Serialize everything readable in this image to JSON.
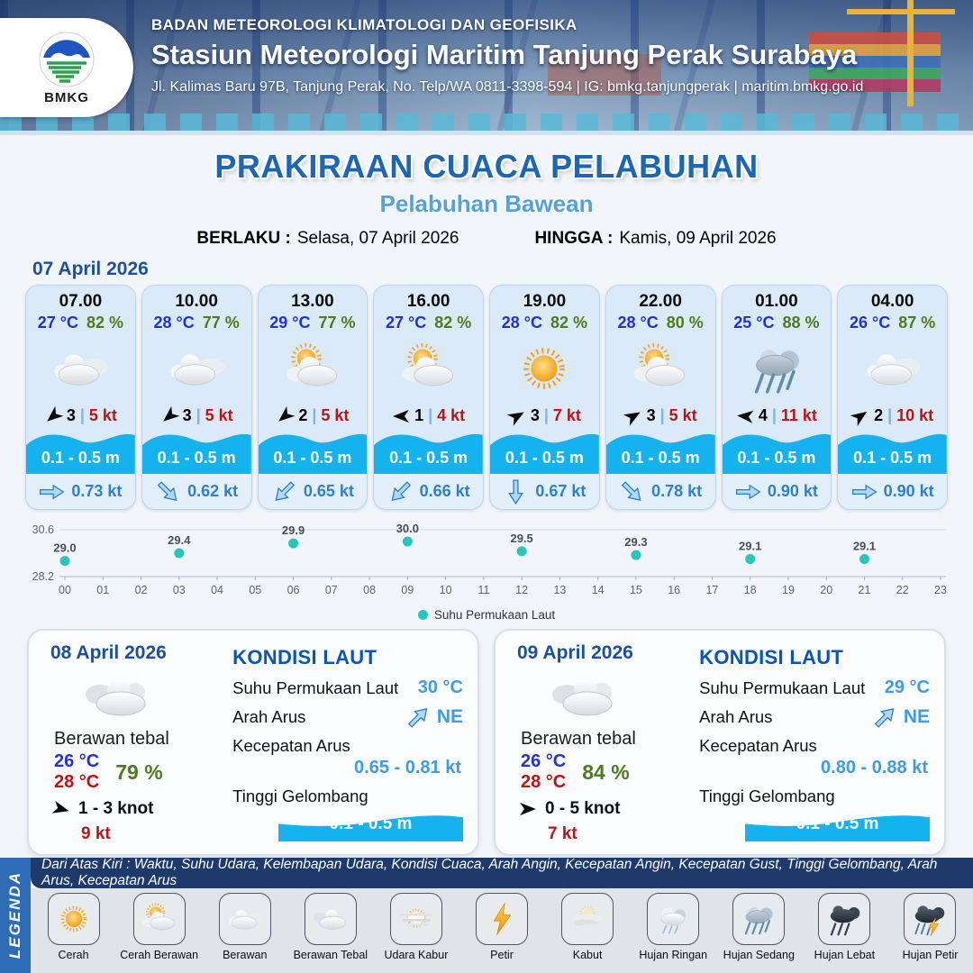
{
  "header": {
    "logo": "BMKG",
    "agency": "BADAN METEOROLOGI KLIMATOLOGI DAN GEOFISIKA",
    "station": "Stasiun Meteorologi Maritim Tanjung Perak Surabaya",
    "contact": "Jl. Kalimas Baru 97B, Tanjung Perak, No. Telp/WA 0811-3398-594 | IG: bmkg.tanjungperak | maritim.bmkg.go.id"
  },
  "title": {
    "main": "PRAKIRAAN CUACA PELABUHAN",
    "port": "Pelabuhan Bawean",
    "berlaku_label": "BERLAKU :",
    "berlaku_value": "Selasa, 07 April 2026",
    "hingga_label": "HINGGA :",
    "hingga_value": "Kamis, 09 April 2026"
  },
  "hourly_date": "07 April 2026",
  "ui": {
    "divider": "|"
  },
  "colors": {
    "accent_blue": "#1b66b5",
    "temp_blue": "#2330d6",
    "humidity_green": "#4e7c1d",
    "gust_red": "#c01212",
    "wave_cyan": "#14b2ee",
    "current_blue": "#2d7fd2",
    "sst_point": "#26c6b9"
  },
  "hourly": [
    {
      "time": "07.00",
      "temp": "27 °C",
      "humidity": "82 %",
      "icon": "berawan",
      "icon_ref": "#ic-berawan",
      "wind": "3",
      "gust": "5 kt",
      "wind_style": "transform:rotate(140deg)",
      "wave": "0.1 - 0.5 m",
      "current": "0.73 kt",
      "current_style": "transform:rotate(0deg)"
    },
    {
      "time": "10.00",
      "temp": "28 °C",
      "humidity": "77 %",
      "icon": "berawan",
      "icon_ref": "#ic-berawan",
      "wind": "3",
      "gust": "5 kt",
      "wind_style": "transform:rotate(140deg)",
      "wave": "0.1 - 0.5 m",
      "current": "0.62 kt",
      "current_style": "transform:rotate(45deg)"
    },
    {
      "time": "13.00",
      "temp": "29 °C",
      "humidity": "77 %",
      "icon": "cerah-berawan",
      "icon_ref": "#ic-cerah-berawan",
      "wind": "2",
      "gust": "5 kt",
      "wind_style": "transform:rotate(140deg)",
      "wave": "0.1 - 0.5 m",
      "current": "0.65 kt",
      "current_style": "transform:rotate(135deg)"
    },
    {
      "time": "16.00",
      "temp": "27 °C",
      "humidity": "82 %",
      "icon": "cerah-berawan",
      "icon_ref": "#ic-cerah-berawan",
      "wind": "1",
      "gust": "4 kt",
      "wind_style": "transform:rotate(180deg)",
      "wave": "0.1 - 0.5 m",
      "current": "0.66 kt",
      "current_style": "transform:rotate(135deg)"
    },
    {
      "time": "19.00",
      "temp": "28 °C",
      "humidity": "82 %",
      "icon": "cerah",
      "icon_ref": "#ic-cerah",
      "wind": "3",
      "gust": "7 kt",
      "wind_style": "transform:rotate(-30deg)",
      "wave": "0.1 - 0.5 m",
      "current": "0.67 kt",
      "current_style": "transform:rotate(90deg)"
    },
    {
      "time": "22.00",
      "temp": "28 °C",
      "humidity": "80 %",
      "icon": "cerah-berawan",
      "icon_ref": "#ic-cerah-berawan",
      "wind": "3",
      "gust": "5 kt",
      "wind_style": "transform:rotate(-30deg)",
      "wave": "0.1 - 0.5 m",
      "current": "0.78 kt",
      "current_style": "transform:rotate(45deg)"
    },
    {
      "time": "01.00",
      "temp": "25 °C",
      "humidity": "88 %",
      "icon": "hujan-sedang",
      "icon_ref": "#ic-hujan-sedang",
      "wind": "4",
      "gust": "11 kt",
      "wind_style": "transform:rotate(185deg)",
      "wave": "0.1 - 0.5 m",
      "current": "0.90 kt",
      "current_style": "transform:rotate(0deg)"
    },
    {
      "time": "04.00",
      "temp": "26 °C",
      "humidity": "87 %",
      "icon": "berawan",
      "icon_ref": "#ic-berawan",
      "wind": "2",
      "gust": "10 kt",
      "wind_style": "transform:rotate(-35deg)",
      "wave": "0.1 - 0.5 m",
      "current": "0.90 kt",
      "current_style": "transform:rotate(0deg)"
    }
  ],
  "chart_data": {
    "type": "scatter",
    "legend": "Suhu Permukaan Laut",
    "x": [
      0,
      3,
      6,
      9,
      12,
      15,
      18,
      21
    ],
    "values": [
      29.0,
      29.4,
      29.9,
      30.0,
      29.5,
      29.3,
      29.1,
      29.1
    ],
    "x_ticks": [
      "00",
      "01",
      "02",
      "03",
      "04",
      "05",
      "06",
      "07",
      "08",
      "09",
      "10",
      "11",
      "12",
      "13",
      "14",
      "15",
      "16",
      "17",
      "18",
      "19",
      "20",
      "21",
      "22",
      "23"
    ],
    "ylim": [
      28.2,
      30.6
    ],
    "y_tick_labels": [
      "30.6",
      "28.2"
    ],
    "point_color": "#26c6b9",
    "xlabel": "",
    "ylabel": "",
    "grid": "top and bottom lines only",
    "legend_position": "bottom-center"
  },
  "sea_labels": {
    "title": "KONDISI LAUT",
    "sst": "Suhu Permukaan Laut",
    "arah": "Arah Arus",
    "kecepatan": "Kecepatan Arus",
    "tinggi": "Tinggi Gelombang"
  },
  "daily": [
    {
      "date": "08 April 2026",
      "condition": "Berawan tebal",
      "icon": "berawan-tebal",
      "icon_ref": "#ic-berawan-tebal",
      "temp_min": "26 °C",
      "temp_max": "28 °C",
      "humidity": "79 %",
      "wind": "1  - 3 knot",
      "wind_style": "transform:rotate(15deg)",
      "gust": "9 kt",
      "sea": {
        "sst": "30 °C",
        "arah": "NE",
        "arah_style": "transform:rotate(-45deg)",
        "kecepatan": "0.65  - 0.81 kt",
        "tinggi": "0.1 - 0.5 m"
      }
    },
    {
      "date": "09 April 2026",
      "condition": "Berawan tebal",
      "icon": "berawan-tebal",
      "icon_ref": "#ic-berawan-tebal",
      "temp_min": "26 °C",
      "temp_max": "28 °C",
      "humidity": "84 %",
      "wind": "0  - 5 knot",
      "wind_style": "transform:rotate(0deg)",
      "gust": "7 kt",
      "sea": {
        "sst": "29 °C",
        "arah": "NE",
        "arah_style": "transform:rotate(-45deg)",
        "kecepatan": "0.80 - 0.88 kt",
        "tinggi": "0.1 - 0.5 m"
      }
    }
  ],
  "legend": {
    "side": "LEGENDA",
    "note": "Dari Atas Kiri : Waktu, Suhu Udara, Kelembapan Udara, Kondisi Cuaca, Arah Angin, Kecepatan Angin, Kecepatan Gust, Tinggi Gelombang, Arah Arus, Kecepatan Arus",
    "items": [
      {
        "label": "Cerah",
        "icon_ref": "#ic-cerah"
      },
      {
        "label": "Cerah Berawan",
        "icon_ref": "#ic-cerah-berawan"
      },
      {
        "label": "Berawan",
        "icon_ref": "#ic-berawan"
      },
      {
        "label": "Berawan Tebal",
        "icon_ref": "#ic-berawan-tebal"
      },
      {
        "label": "Udara Kabur",
        "icon_ref": "#ic-udara-kabur"
      },
      {
        "label": "Petir",
        "icon_ref": "#ic-petir"
      },
      {
        "label": "Kabut",
        "icon_ref": "#ic-kabut"
      },
      {
        "label": "Hujan Ringan",
        "icon_ref": "#ic-hujan-ringan"
      },
      {
        "label": "Hujan Sedang",
        "icon_ref": "#ic-hujan-sedang"
      },
      {
        "label": "Hujan Lebat",
        "icon_ref": "#ic-hujan-lebat"
      },
      {
        "label": "Hujan Petir",
        "icon_ref": "#ic-hujan-petir"
      }
    ]
  }
}
